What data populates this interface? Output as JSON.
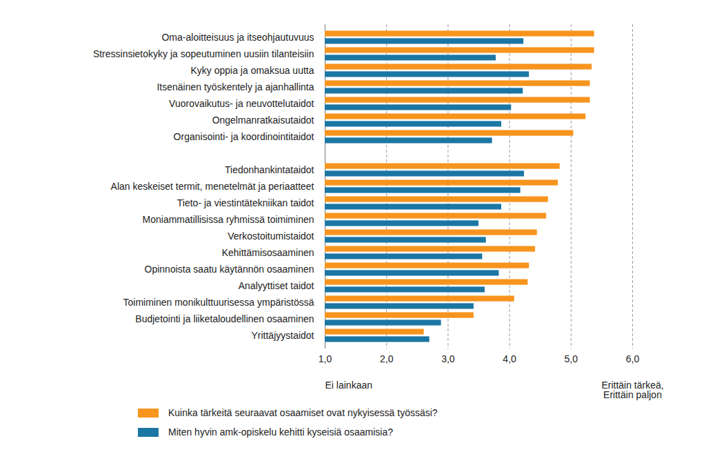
{
  "chart_data": {
    "type": "bar",
    "orientation": "horizontal",
    "grid": true,
    "legend": "bottom",
    "categories": [
      "Oma-aloitteisuus ja itseohjautuvuus",
      "Stressinsietokyky ja sopeutuminen uusiin tilanteisiin",
      "Kyky oppia ja omaksua uutta",
      "Itsenäinen työskentely ja ajanhallinta",
      "Vuorovaikutus- ja neuvottelutaidot",
      "Ongelmanratkaisutaidot",
      "Organisointi- ja koordinointitaidot",
      null,
      "Tiedonhankintataidot",
      "Alan keskeiset termit, menetelmät ja periaatteet",
      "Tieto- ja viestintätekniikan taidot",
      "Moniammatillisissa ryhmissä toimiminen",
      "Verkostoitumistaidot",
      "Kehittämisosaaminen",
      "Opinnoista saatu käytännön osaaminen",
      "Analyyttiset taidot",
      "Toimiminen monikulttuurisessa ympäristössä",
      "Budjetointi ja liiketaloudellinen osaaminen",
      "Yrittäjyystaidot"
    ],
    "series": [
      {
        "name": "Kuinka tärkeitä seuraavat osaamiset ovat nykyisessä työssäsi?",
        "color": "#f7941e",
        "values": [
          5.38,
          5.38,
          5.34,
          5.31,
          5.31,
          5.24,
          5.04,
          null,
          4.82,
          4.79,
          4.63,
          4.6,
          4.45,
          4.42,
          4.32,
          4.3,
          4.08,
          3.42,
          2.61
        ]
      },
      {
        "name": "Miten hyvin amk-opiskelu kehitti kyseisiä osaamisia?",
        "color": "#1b76a3",
        "values": [
          4.23,
          3.78,
          4.32,
          4.22,
          4.03,
          3.87,
          3.72,
          null,
          4.24,
          4.18,
          3.87,
          3.5,
          3.62,
          3.56,
          3.83,
          3.6,
          3.42,
          2.89,
          2.7
        ]
      }
    ],
    "xlim": [
      1,
      6
    ],
    "xticks": [
      {
        "value": 1,
        "label": "1,0"
      },
      {
        "value": 2,
        "label": "2,0"
      },
      {
        "value": 3,
        "label": "3,0"
      },
      {
        "value": 4,
        "label": "4,0"
      },
      {
        "value": 5,
        "label": "5,0"
      },
      {
        "value": 6,
        "label": "6,0"
      }
    ],
    "annotations": [
      {
        "x": 1,
        "lines": [
          "Ei lainkaan"
        ]
      },
      {
        "x": 6,
        "lines": [
          "Erittäin tärkeä,",
          "Erittäin paljon"
        ]
      }
    ]
  }
}
